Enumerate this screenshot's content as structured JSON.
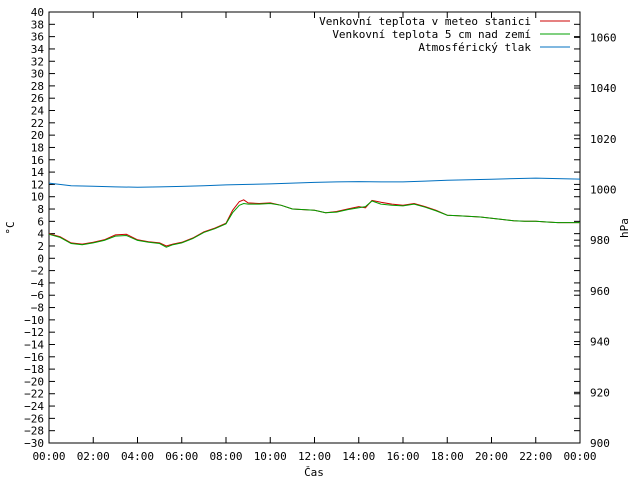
{
  "chart_data": {
    "type": "line",
    "xlabel": "Čas",
    "ylabel_left": "°C",
    "ylabel_right": "hPa",
    "x_ticks": [
      "00:00",
      "02:00",
      "04:00",
      "06:00",
      "08:00",
      "10:00",
      "12:00",
      "14:00",
      "16:00",
      "18:00",
      "20:00",
      "22:00",
      "00:00"
    ],
    "xlim_hours": [
      0,
      24
    ],
    "ylim_left": [
      -30,
      40
    ],
    "ylim_right": [
      900,
      1070
    ],
    "y_left_ticks": [
      40,
      38,
      36,
      34,
      32,
      30,
      28,
      26,
      24,
      22,
      20,
      18,
      16,
      14,
      12,
      10,
      8,
      6,
      4,
      2,
      0,
      -2,
      -4,
      -6,
      -8,
      -10,
      -12,
      -14,
      -16,
      -18,
      -20,
      -22,
      -24,
      -26,
      -28,
      -30
    ],
    "y_right_ticks": [
      1060,
      1040,
      1020,
      1000,
      980,
      960,
      940,
      920,
      900
    ],
    "legend_position": "top-right",
    "grid": false,
    "series": [
      {
        "name": "Venkovní teplota v meteo stanici",
        "axis": "left",
        "color": "#cc0000",
        "x": [
          0,
          0.5,
          1,
          1.5,
          2,
          2.5,
          3,
          3.5,
          4,
          4.5,
          5,
          5.3,
          5.6,
          6,
          6.5,
          7,
          7.5,
          8,
          8.3,
          8.6,
          8.8,
          9,
          9.5,
          10,
          10.5,
          11,
          11.5,
          12,
          12.5,
          13,
          13.5,
          14,
          14.3,
          14.6,
          15,
          15.5,
          16,
          16.5,
          17,
          17.5,
          18,
          18.5,
          19,
          19.5,
          20,
          20.5,
          21,
          21.5,
          22,
          22.5,
          23,
          23.5,
          24
        ],
        "y": [
          4.0,
          3.5,
          2.5,
          2.3,
          2.6,
          3.0,
          3.8,
          3.9,
          3.0,
          2.7,
          2.5,
          2.0,
          2.3,
          2.6,
          3.3,
          4.3,
          4.9,
          5.7,
          7.8,
          9.2,
          9.5,
          9.0,
          8.9,
          9.0,
          8.6,
          8.0,
          7.9,
          7.8,
          7.4,
          7.6,
          8.0,
          8.4,
          8.2,
          9.4,
          9.1,
          8.8,
          8.6,
          8.9,
          8.4,
          7.8,
          7.0,
          6.9,
          6.8,
          6.7,
          6.5,
          6.3,
          6.1,
          6.0,
          6.0,
          5.9,
          5.8,
          5.8,
          5.8
        ]
      },
      {
        "name": "Venkovní teplota 5 cm nad zemí",
        "axis": "left",
        "color": "#00a000",
        "x": [
          0,
          0.5,
          1,
          1.5,
          2,
          2.5,
          3,
          3.5,
          4,
          4.5,
          5,
          5.3,
          5.6,
          6,
          6.5,
          7,
          7.5,
          8,
          8.3,
          8.6,
          8.8,
          9,
          9.5,
          10,
          10.5,
          11,
          11.5,
          12,
          12.5,
          13,
          13.5,
          14,
          14.3,
          14.6,
          15,
          15.5,
          16,
          16.5,
          17,
          17.5,
          18,
          18.5,
          19,
          19.5,
          20,
          20.5,
          21,
          21.5,
          22,
          22.5,
          23,
          23.5,
          24
        ],
        "y": [
          3.9,
          3.4,
          2.4,
          2.2,
          2.5,
          2.9,
          3.6,
          3.7,
          2.9,
          2.6,
          2.4,
          1.8,
          2.2,
          2.5,
          3.2,
          4.2,
          4.8,
          5.6,
          7.4,
          8.6,
          8.9,
          8.8,
          8.8,
          8.9,
          8.6,
          8.0,
          7.9,
          7.8,
          7.4,
          7.5,
          7.9,
          8.2,
          8.4,
          9.3,
          8.8,
          8.6,
          8.5,
          8.8,
          8.3,
          7.7,
          7.0,
          6.9,
          6.8,
          6.7,
          6.5,
          6.3,
          6.1,
          6.0,
          6.0,
          5.9,
          5.8,
          5.8,
          5.8
        ]
      },
      {
        "name": "Atmosférický tlak",
        "axis": "right",
        "color": "#0070c0",
        "x": [
          0,
          1,
          2,
          3,
          4,
          5,
          6,
          7,
          8,
          9,
          10,
          11,
          12,
          13,
          14,
          15,
          16,
          17,
          18,
          19,
          20,
          21,
          22,
          23,
          24
        ],
        "y": [
          1002.5,
          1001.5,
          1001.3,
          1001.0,
          1000.9,
          1001.0,
          1001.2,
          1001.5,
          1001.8,
          1002.0,
          1002.2,
          1002.5,
          1002.8,
          1003.0,
          1003.1,
          1003.0,
          1003.0,
          1003.3,
          1003.6,
          1003.8,
          1004.0,
          1004.3,
          1004.5,
          1004.3,
          1004.1
        ]
      }
    ]
  }
}
